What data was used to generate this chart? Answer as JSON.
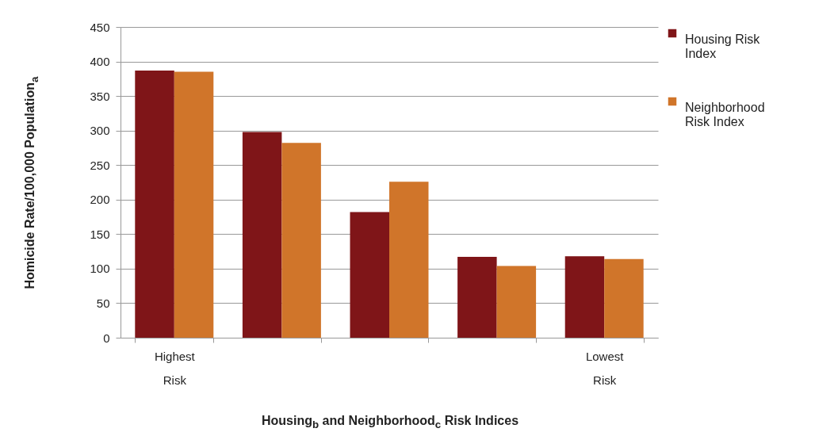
{
  "chart_data": {
    "type": "bar",
    "xlabel": "Housing$_{b}$ and Neighborhood$_{c}$ Risk Indices",
    "ylabel": "Homicide Rate/100,000 Population$_{a}$",
    "categories": [
      "Highest Risk",
      null,
      null,
      null,
      "Lowest Risk"
    ],
    "series": [
      {
        "name": "Housing Risk Index",
        "color": "#7f1518",
        "values": [
          387,
          298,
          182,
          117,
          118
        ]
      },
      {
        "name": "Neighborhood Risk Index",
        "color": "#d0752a",
        "values": [
          385,
          282,
          226,
          104,
          114
        ]
      }
    ],
    "ylim": [
      0,
      450
    ],
    "yticks": [
      0,
      50,
      100,
      150,
      200,
      250,
      300,
      350,
      400,
      450
    ],
    "grid": "y",
    "legend": "right"
  }
}
